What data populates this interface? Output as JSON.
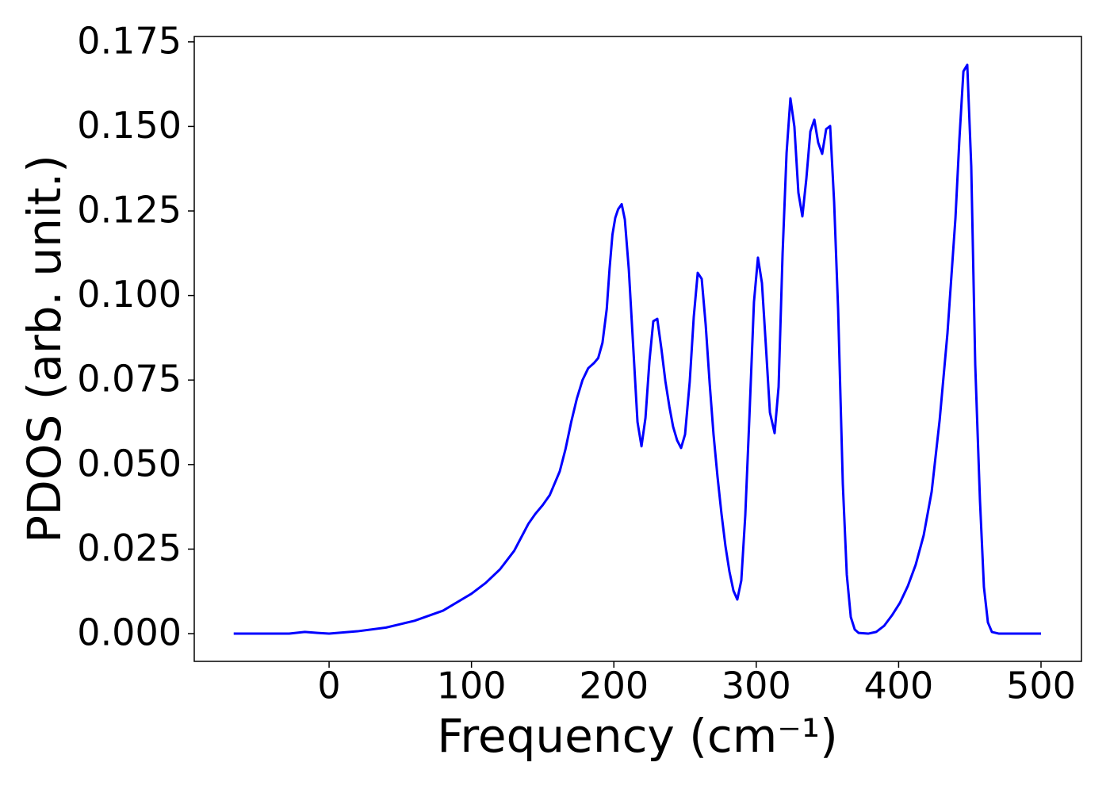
{
  "chart_data": {
    "type": "line",
    "x_label": "Frequency (cm⁻¹)",
    "y_label": "PDOS (arb. unit.)",
    "xlim": [
      -94.7,
      528.4
    ],
    "ylim": [
      -0.0082,
      0.1766
    ],
    "xticks": [
      0,
      100,
      200,
      300,
      400,
      500
    ],
    "yticks": [
      {
        "value": 0,
        "label": "0.000"
      },
      {
        "value": 0.025,
        "label": "0.025"
      },
      {
        "value": 0.05,
        "label": "0.050"
      },
      {
        "value": 0.075,
        "label": "0.075"
      },
      {
        "value": 0.1,
        "label": "0.100"
      },
      {
        "value": 0.125,
        "label": "0.125"
      },
      {
        "value": 0.15,
        "label": "0.150"
      },
      {
        "value": 0.175,
        "label": "0.175"
      }
    ],
    "grid": false,
    "series": [
      {
        "color": "#0000ff",
        "x": [
          -67,
          -28,
          -17,
          -8,
          0,
          20,
          40,
          60,
          80,
          100,
          110,
          120,
          130,
          135,
          140,
          145,
          150,
          155,
          158,
          162,
          166,
          170,
          174,
          178,
          182,
          186,
          189,
          192,
          195,
          197,
          199,
          201,
          203,
          205.5,
          207.7,
          210.5,
          216.6,
          219.4,
          222.2,
          225,
          227.7,
          230.5,
          233.4,
          236.2,
          239,
          241.6,
          244.4,
          247.2,
          250,
          253.3,
          256.1,
          258.9,
          261.7,
          264.5,
          267.3,
          270,
          272.8,
          275.6,
          278.4,
          281.2,
          284,
          286.7,
          289.5,
          292.3,
          295.1,
          298.4,
          301.2,
          304,
          306.8,
          309.6,
          312.9,
          315.7,
          318.5,
          321.3,
          324,
          326.8,
          329.6,
          332.4,
          335.2,
          338,
          340.8,
          343.5,
          346.3,
          349.1,
          351.9,
          354.7,
          357.5,
          360.8,
          363.6,
          366.4,
          369.2,
          371.9,
          378.6,
          384.2,
          389.8,
          395.3,
          400.9,
          406.5,
          412,
          417.6,
          423.2,
          428.8,
          434.3,
          439.9,
          442.7,
          445.5,
          448.2,
          451,
          453.8,
          457.1,
          459.9,
          462.7,
          465.5,
          470.5,
          500
        ],
        "values": [
          0,
          0,
          0.0005,
          0.0002,
          0,
          0.0007,
          0.0018,
          0.0038,
          0.0068,
          0.0118,
          0.015,
          0.019,
          0.0245,
          0.0285,
          0.0325,
          0.0355,
          0.038,
          0.041,
          0.044,
          0.048,
          0.0545,
          0.0625,
          0.0695,
          0.075,
          0.0785,
          0.08,
          0.0815,
          0.086,
          0.096,
          0.108,
          0.118,
          0.123,
          0.1255,
          0.127,
          0.1225,
          0.1077,
          0.0626,
          0.0554,
          0.0638,
          0.0807,
          0.0924,
          0.0931,
          0.0842,
          0.0746,
          0.0671,
          0.0612,
          0.0572,
          0.0549,
          0.0589,
          0.0746,
          0.0936,
          0.1067,
          0.1049,
          0.0913,
          0.0739,
          0.0589,
          0.0464,
          0.0354,
          0.0258,
          0.0183,
          0.0127,
          0.0101,
          0.0157,
          0.035,
          0.0631,
          0.0981,
          0.1112,
          0.1037,
          0.0849,
          0.0654,
          0.0593,
          0.073,
          0.1124,
          0.1422,
          0.1583,
          0.1499,
          0.1304,
          0.1234,
          0.1346,
          0.1485,
          0.152,
          0.1452,
          0.1419,
          0.1492,
          0.1501,
          0.1276,
          0.0959,
          0.0443,
          0.0174,
          0.0049,
          0.0012,
          0.0002,
          0,
          0.0005,
          0.0023,
          0.0054,
          0.0091,
          0.0141,
          0.0204,
          0.0291,
          0.042,
          0.0631,
          0.0889,
          0.1229,
          0.1464,
          0.1663,
          0.1682,
          0.1382,
          0.0795,
          0.0396,
          0.0138,
          0.0033,
          0.0005,
          0,
          0
        ]
      }
    ]
  }
}
